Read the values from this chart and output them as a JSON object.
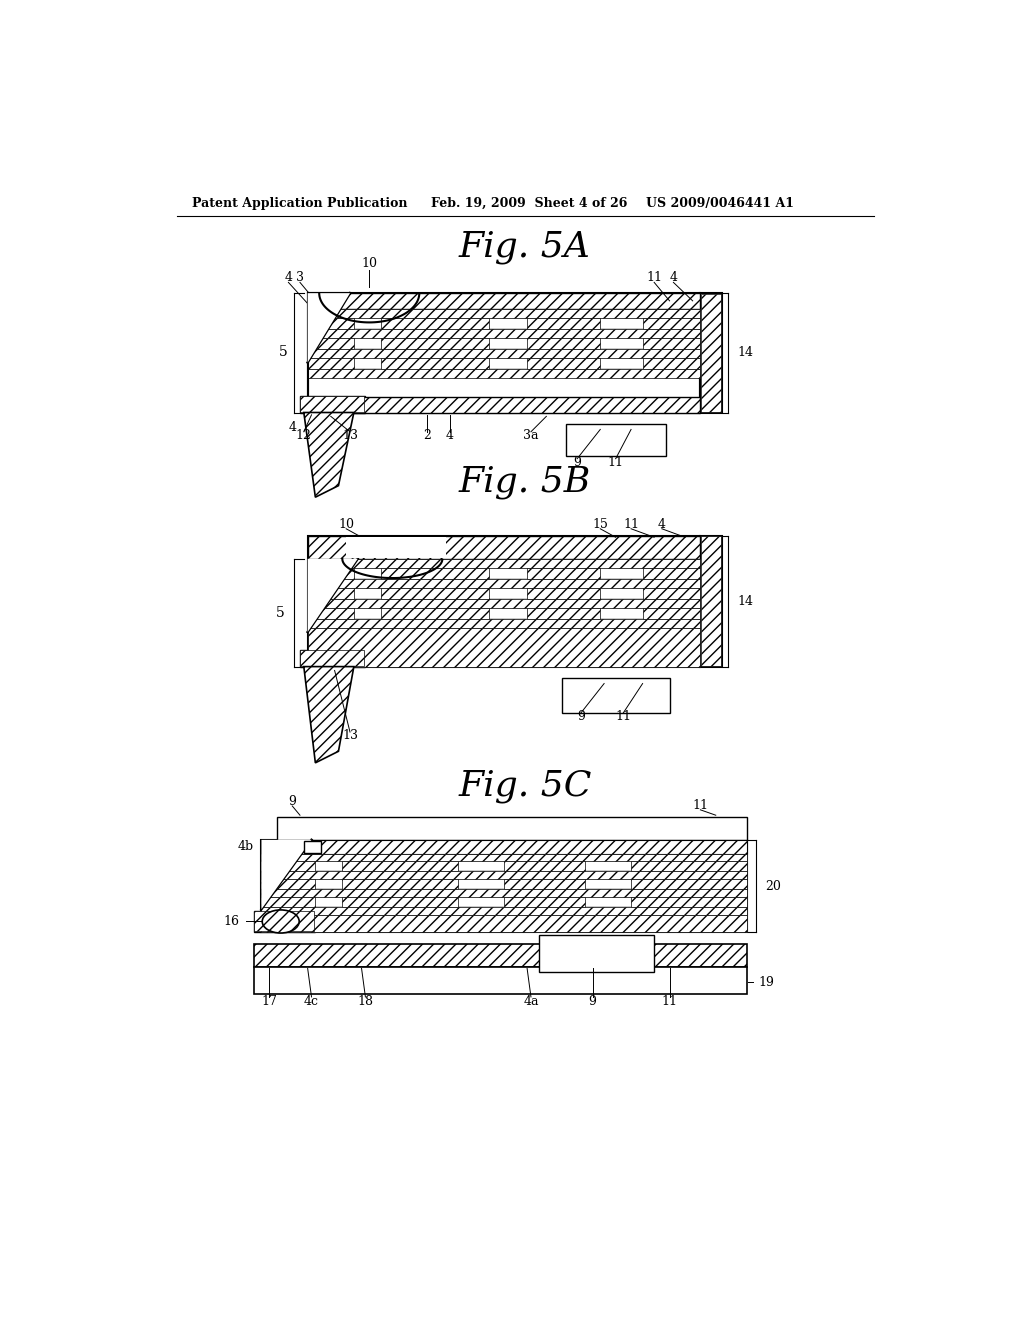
{
  "bg_color": "#ffffff",
  "header_left": "Patent Application Publication",
  "header_mid": "Feb. 19, 2009  Sheet 4 of 26",
  "header_right": "US 2009/0046441 A1",
  "fig5A": "Fig. 5A",
  "fig5B": "Fig. 5B",
  "fig5C": "Fig. 5C"
}
